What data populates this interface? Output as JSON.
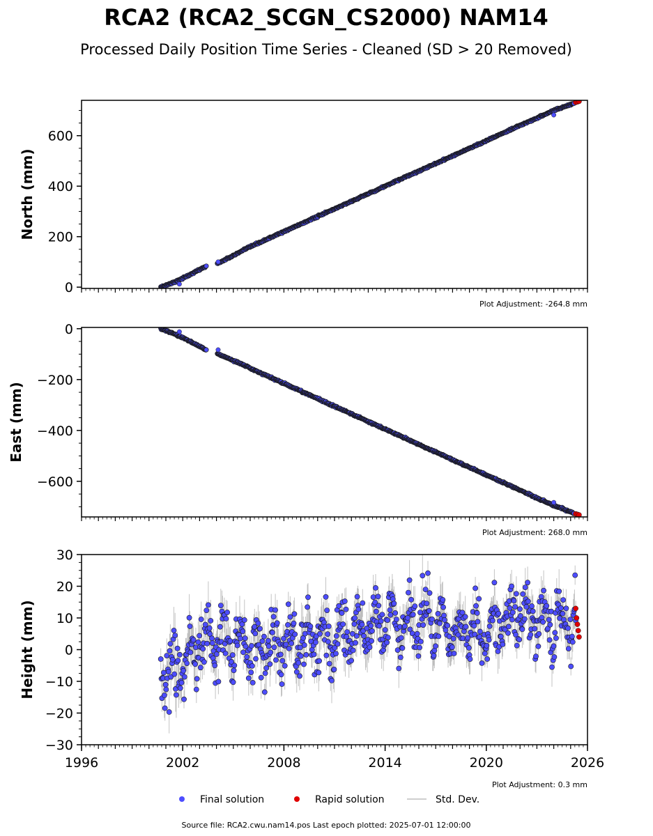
{
  "title": "RCA2 (RCA2_SCGN_CS2000) NAM14",
  "subtitle": "Processed Daily Position Time Series - Cleaned (SD > 20 Removed)",
  "legend": {
    "final": "Final solution",
    "rapid": "Rapid solution",
    "std": "Std. Dev."
  },
  "footer": "Source file: RCA2.cwu.nam14.pos  Last epoch plotted: 2025-07-01 12:00:00",
  "colors": {
    "final": "#4d4dff",
    "final_edge": "#1a1a1a",
    "rapid": "#e00000",
    "stddev": "#bdbdbd"
  },
  "chart_data": [
    {
      "type": "scatter",
      "ylabel": "North (mm)",
      "adjustment": "Plot Adjustment: -264.8 mm",
      "xlim": [
        1996,
        2026
      ],
      "ylim": [
        -5,
        740
      ],
      "yticks": [
        0,
        200,
        400,
        600
      ],
      "ytick_labels": [
        "0",
        "200",
        "400",
        "600"
      ],
      "show_xtick_labels": false,
      "series": [
        {
          "name": "Final solution",
          "x": [
            2000.7,
            2001.5,
            2002.3,
            2003.3,
            2004.1,
            2005.0,
            2006.0,
            2007.0,
            2008.0,
            2009.0,
            2010.0,
            2011.0,
            2012.0,
            2013.0,
            2014.0,
            2015.0,
            2016.0,
            2017.0,
            2018.0,
            2019.0,
            2020.0,
            2021.0,
            2022.0,
            2023.0,
            2024.0,
            2025.2
          ],
          "y": [
            0,
            20,
            45,
            80,
            95,
            125,
            160,
            190,
            220,
            250,
            280,
            310,
            340,
            370,
            400,
            430,
            460,
            490,
            520,
            550,
            580,
            610,
            640,
            670,
            700,
            728
          ]
        },
        {
          "name": "Rapid solution",
          "x": [
            2025.3,
            2025.4,
            2025.5
          ],
          "y": [
            732,
            734,
            736
          ]
        }
      ]
    },
    {
      "type": "scatter",
      "ylabel": "East (mm)",
      "adjustment": "Plot Adjustment: 268.0 mm",
      "xlim": [
        1996,
        2026
      ],
      "ylim": [
        -740,
        5
      ],
      "yticks": [
        0,
        -200,
        -400,
        -600
      ],
      "ytick_labels": [
        "0",
        "−200",
        "−400",
        "−600"
      ],
      "show_xtick_labels": false,
      "series": [
        {
          "name": "Final solution",
          "x": [
            2000.7,
            2001.5,
            2002.3,
            2003.3,
            2004.1,
            2005.0,
            2006.0,
            2007.0,
            2008.0,
            2009.0,
            2010.0,
            2011.0,
            2012.0,
            2013.0,
            2014.0,
            2015.0,
            2016.0,
            2017.0,
            2018.0,
            2019.0,
            2020.0,
            2021.0,
            2022.0,
            2023.0,
            2024.0,
            2025.2
          ],
          "y": [
            0,
            -20,
            -45,
            -80,
            -100,
            -125,
            -155,
            -185,
            -215,
            -245,
            -275,
            -305,
            -335,
            -365,
            -395,
            -425,
            -455,
            -485,
            -515,
            -545,
            -575,
            -605,
            -635,
            -665,
            -695,
            -725
          ]
        },
        {
          "name": "Rapid solution",
          "x": [
            2025.3,
            2025.4,
            2025.5
          ],
          "y": [
            -728,
            -730,
            -732
          ]
        }
      ]
    },
    {
      "type": "scatter",
      "ylabel": "Height (mm)",
      "adjustment": "Plot Adjustment: 0.3 mm",
      "xlim": [
        1996,
        2026
      ],
      "ylim": [
        -30,
        30
      ],
      "yticks": [
        30,
        20,
        10,
        0,
        -10,
        -20,
        -30
      ],
      "ytick_labels": [
        "30",
        "20",
        "10",
        "0",
        "−10",
        "−20",
        "−30"
      ],
      "xticks": [
        1996,
        2002,
        2008,
        2014,
        2020,
        2026
      ],
      "xtick_labels": [
        "1996",
        "2002",
        "2008",
        "2014",
        "2020",
        "2026"
      ],
      "show_xtick_labels": true,
      "trend": {
        "start": [
          2000.7,
          -5
        ],
        "end": [
          2025.3,
          9
        ],
        "amplitude": 5.5,
        "noise": 4.5
      },
      "series": [
        {
          "name": "Final solution",
          "x": [
            2000.7,
            2001.0,
            2002.0,
            2003.3,
            2004.5,
            2006.0,
            2008.0,
            2010.0,
            2012.0,
            2014.0,
            2016.0,
            2018.0,
            2020.0,
            2022.0,
            2024.0,
            2025.2
          ],
          "y": [
            -5,
            -10,
            -4,
            2,
            3,
            0,
            2,
            3,
            6,
            8,
            9,
            6,
            7,
            11,
            8,
            9
          ]
        },
        {
          "name": "Rapid solution",
          "x": [
            2025.3,
            2025.35,
            2025.4,
            2025.45,
            2025.5
          ],
          "y": [
            13,
            10,
            8,
            6,
            4
          ]
        }
      ]
    }
  ]
}
